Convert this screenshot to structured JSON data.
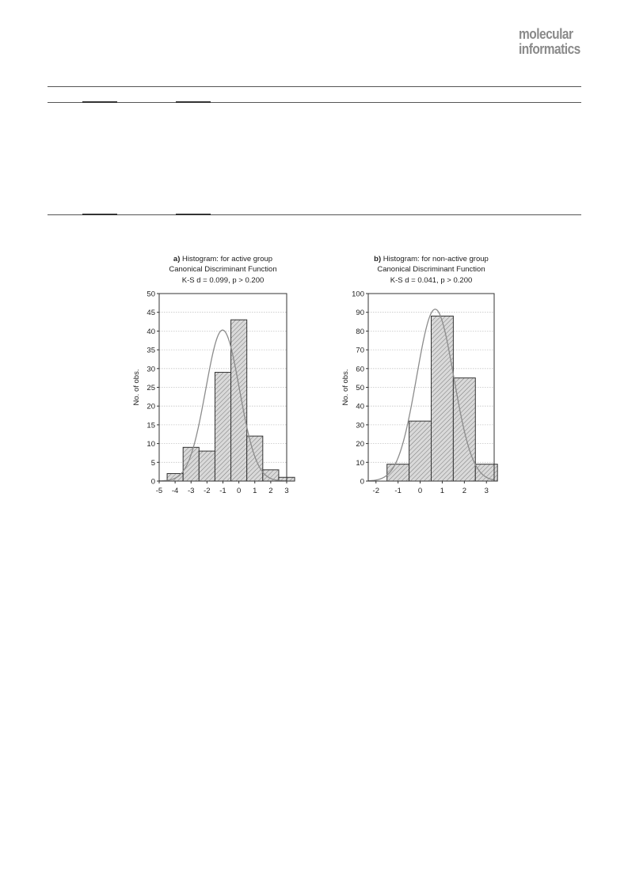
{
  "logo": {
    "line1": "molecular",
    "line2": "informatics"
  },
  "chart_data": [
    {
      "type": "bar",
      "title_bold": "a)",
      "title": "Histogram: for active group",
      "subtitle1": "Canonical Discriminant Function",
      "subtitle2": "K-S d = 0.099, p > 0.200",
      "ylabel": "No. of obs.",
      "xlabel": "",
      "xlim": [
        -5,
        3
      ],
      "ylim": [
        0,
        50
      ],
      "xticks": [
        -5,
        -4,
        -3,
        -2,
        -1,
        0,
        1,
        2,
        3
      ],
      "yticks": [
        0,
        5,
        10,
        15,
        20,
        25,
        30,
        35,
        40,
        45,
        50
      ],
      "bin_edges": [
        -4.5,
        -3.5,
        -2.5,
        -1.5,
        -0.5,
        0.5,
        1.5,
        2.5,
        3.5
      ],
      "values": [
        2,
        9,
        8,
        29,
        43,
        12,
        3,
        1
      ],
      "normal_fit": {
        "mean": -1.02,
        "sd": 1.06,
        "n": 107,
        "bin_width": 1.0
      },
      "grid": true,
      "hatch": true
    },
    {
      "type": "bar",
      "title_bold": "b)",
      "title": "Histogram: for non-active group",
      "subtitle1": "Canonical Discriminant Function",
      "subtitle2": "K-S d = 0.041, p > 0.200",
      "ylabel": "No. of obs.",
      "xlabel": "",
      "xlim": [
        -2.35,
        3.35
      ],
      "ylim": [
        0,
        100
      ],
      "xticks": [
        -2,
        -1,
        0,
        1,
        2,
        3
      ],
      "yticks": [
        0,
        10,
        20,
        30,
        40,
        50,
        60,
        70,
        80,
        90,
        100
      ],
      "bin_edges": [
        -2.5,
        -1.5,
        -0.5,
        0.5,
        1.5,
        2.5,
        3.5
      ],
      "values": [
        0,
        9,
        32,
        88,
        55,
        9
      ],
      "normal_fit": {
        "mean": 0.68,
        "sd": 0.84,
        "n": 193,
        "bin_width": 1.0
      },
      "grid": true,
      "hatch": true
    }
  ]
}
